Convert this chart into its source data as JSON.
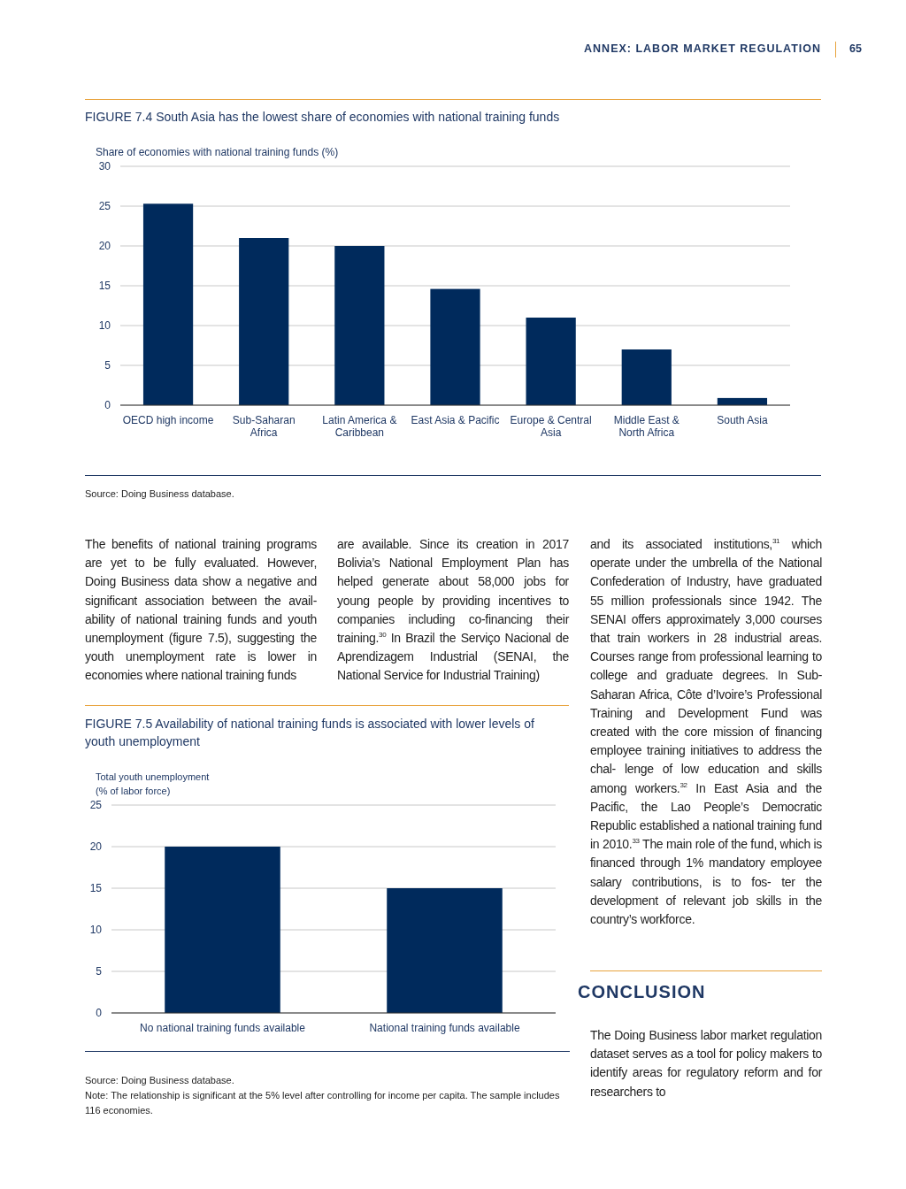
{
  "chart_data": [
    {
      "type": "bar",
      "title": "FIGURE 7.4    South Asia has the lowest share of economies with national training funds",
      "ylabel": "Share of economies with national training funds (%)",
      "categories": [
        "OECD high income",
        "Sub-Saharan Africa",
        "Latin America & Caribbean",
        "East Asia & Pacific",
        "Europe & Central Asia",
        "Middle East & North Africa",
        "South Asia"
      ],
      "values": [
        25.3,
        21.0,
        20.0,
        14.6,
        11.0,
        7.0,
        0.9
      ],
      "color": "#002a5c",
      "ylim": [
        0,
        30
      ],
      "yticks": [
        0,
        5,
        10,
        15,
        20,
        25,
        30
      ],
      "grid": "y",
      "annotations": [
        "Source: Doing Business database."
      ]
    },
    {
      "type": "bar",
      "title": "FIGURE 7.5    Availability of national training funds is associated with lower levels of youth unemployment",
      "ylabel": "Total youth unemployment (% of labor force)",
      "categories": [
        "No national training funds available",
        "National training funds available"
      ],
      "values": [
        20,
        15
      ],
      "color": "#002a5c",
      "ylim": [
        0,
        25
      ],
      "yticks": [
        0,
        5,
        10,
        15,
        20,
        25
      ],
      "grid": "y",
      "annotations": [
        "Source: Doing Business database.",
        "Note: The relationship is significant at the 5% level after controlling for income per capita. The sample includes 116 economies."
      ]
    },
    {
      "type": "other",
      "annotations": [
        "ANNEX: LABOR MARKET REGULATION",
        "65",
        "The benefits of national training programs are yet to be fully evaluated. However, Doing Business data show a negative and significant association between the avail- ability of national training funds and youth unemployment (figure 7.5), suggesting the youth unemployment rate is lower in economies where national training funds",
        "are available. Since its creation in 2017 Bolivia’s National Employment Plan has helped generate about 58,000 jobs for young people by providing incentives to companies including co-financing their training.$^{30}$ In Brazil the Serviço Nacional de Aprendizagem Industrial (SENAI, the National Service for Industrial Training)",
        "and its associated institutions,$^{31}$ which operate under the umbrella of the National Confederation of Industry, have graduated 55 million professionals since 1942. The SENAI offers approximately 3,000 courses that train workers in 28 industrial areas. Courses range from professional learning to college and graduate degrees. In Sub-Saharan Africa, Côte d’Ivoire’s Professional Training and Development Fund was created with the core mission of financing employee training initiatives to address the chal- lenge of low education and skills among workers.$^{32}$ In East Asia and the Pacific, the Lao People’s Democratic Republic established a national training fund in 2010.$^{33}$ The main role of the fund, which is financed through 1% mandatory employee salary contributions, is to fos- ter the development of relevant job skills in the country’s workforce.",
        "CONCLUSION",
        "The Doing Business labor market regulation dataset serves as a tool for policy makers to identify areas for regulatory reform and for researchers to"
      ]
    }
  ]
}
